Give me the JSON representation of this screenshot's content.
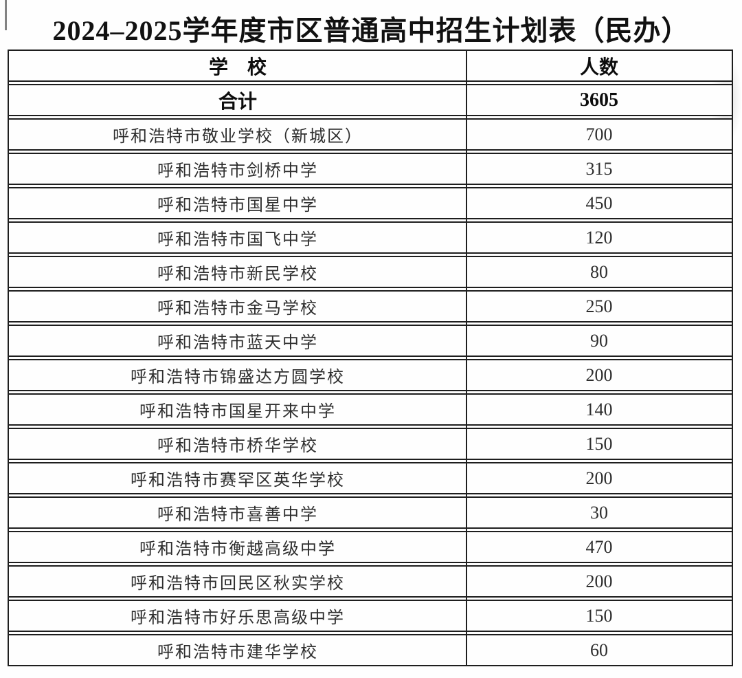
{
  "page": {
    "title": "2024–2025学年度市区普通高中招生计划表（民办）"
  },
  "table": {
    "header": {
      "school": "学　校",
      "count": "人数"
    },
    "total": {
      "school": "合计",
      "count": "3605"
    },
    "rows": [
      {
        "school": "呼和浩特市敬业学校（新城区）",
        "count": "700"
      },
      {
        "school": "呼和浩特市剑桥中学",
        "count": "315"
      },
      {
        "school": "呼和浩特市国星中学",
        "count": "450"
      },
      {
        "school": "呼和浩特市国飞中学",
        "count": "120"
      },
      {
        "school": "呼和浩特市新民学校",
        "count": "80"
      },
      {
        "school": "呼和浩特市金马学校",
        "count": "250"
      },
      {
        "school": "呼和浩特市蓝天中学",
        "count": "90"
      },
      {
        "school": "呼和浩特市锦盛达方圆学校",
        "count": "200"
      },
      {
        "school": "呼和浩特市国星开来中学",
        "count": "140"
      },
      {
        "school": "呼和浩特市桥华学校",
        "count": "150"
      },
      {
        "school": "呼和浩特市赛罕区英华学校",
        "count": "200"
      },
      {
        "school": "呼和浩特市喜善中学",
        "count": "30"
      },
      {
        "school": "呼和浩特市衡越高级中学",
        "count": "470"
      },
      {
        "school": "呼和浩特市回民区秋实学校",
        "count": "200"
      },
      {
        "school": "呼和浩特市好乐思高级中学",
        "count": "150"
      },
      {
        "school": "呼和浩特市建华学校",
        "count": "60"
      }
    ],
    "colors": {
      "border": "#1e1e1e",
      "text": "#2e2e2e",
      "background": "#fefefe"
    }
  }
}
